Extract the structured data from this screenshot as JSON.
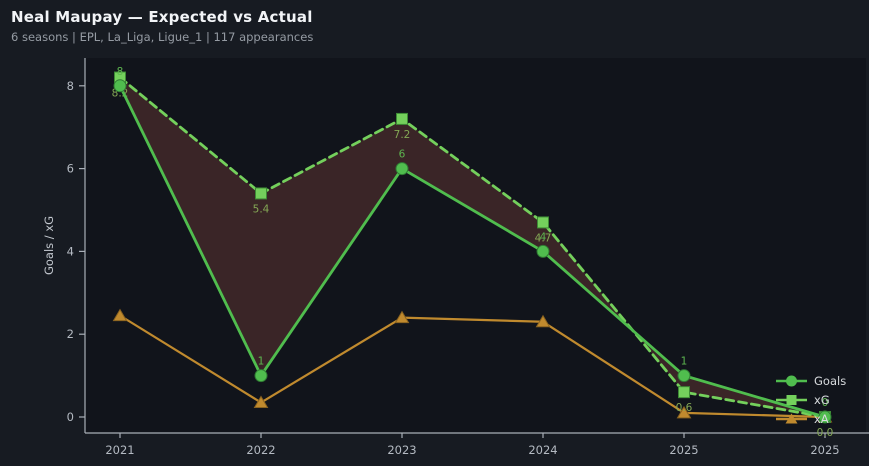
{
  "header": {
    "title": "Neal Maupay — Expected vs Actual",
    "subtitle": "6 seasons | EPL, La_Liga, Ligue_1 | 117 appearances"
  },
  "chart_data": {
    "type": "line",
    "title": "Neal Maupay — Expected vs Actual",
    "xlabel": "",
    "ylabel": "Goals / xG",
    "x_tick_labels": [
      "2021",
      "2022",
      "2023",
      "2024",
      "2025",
      "2025"
    ],
    "yticks": [
      0,
      2,
      4,
      6,
      8
    ],
    "ylim": [
      -0.4,
      8.7
    ],
    "grid": false,
    "legend_position": "bottom-right",
    "series": [
      {
        "name": "Goals",
        "marker": "circle",
        "line_style": "solid",
        "color": "#50bd4e",
        "label_color": "#5db54f",
        "values": [
          8,
          1,
          6,
          4,
          1,
          0
        ],
        "point_labels": [
          "8",
          "1",
          "6",
          "4",
          "1",
          "0"
        ],
        "label_side": "above"
      },
      {
        "name": "xG",
        "marker": "square",
        "line_style": "dashed",
        "color": "#74d05c",
        "label_color": "#84a855",
        "values": [
          8.2,
          5.4,
          7.2,
          4.7,
          0.6,
          0.0
        ],
        "point_labels": [
          "8.2",
          "5.4",
          "7.2",
          "4.7",
          "0.6",
          "0.0"
        ],
        "label_side": "below"
      },
      {
        "name": "xA",
        "marker": "triangle",
        "line_style": "solid",
        "color": "#c08a2e",
        "label_color": "#c08a2e",
        "values": [
          2.45,
          0.35,
          2.4,
          2.3,
          0.1,
          0.0
        ],
        "point_labels": [],
        "label_side": "none"
      }
    ],
    "fill_between": {
      "series_a": "Goals",
      "series_b": "xG",
      "color": "#3a2527"
    }
  },
  "colors": {
    "figure_bg": "#171b22",
    "plot_bg": "#11141b",
    "spine": "#a9afb7",
    "tick_label": "#b4bac2",
    "axis_label": "#c3c8cf",
    "legend_text": "#d8dbde",
    "title": "#f2f4f7",
    "subtitle": "#959ba3"
  }
}
